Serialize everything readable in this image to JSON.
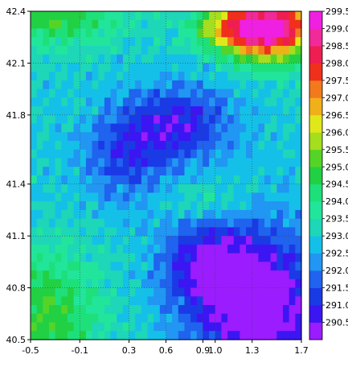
{
  "chart_data": {
    "type": "heatmap",
    "title": "",
    "xlabel": "",
    "ylabel": "",
    "xlim": [
      -0.5,
      1.7
    ],
    "ylim": [
      40.5,
      42.4
    ],
    "x_ticks": [
      "-0.5",
      "-0.1",
      "0.3",
      "0.6",
      "0.9",
      "1.0",
      "1.3",
      "1.7"
    ],
    "x_tick_values": [
      -0.5,
      -0.1,
      0.3,
      0.6,
      0.9,
      1.0,
      1.3,
      1.7
    ],
    "y_ticks": [
      "40.5",
      "40.8",
      "41.1",
      "41.4",
      "41.8",
      "42.1",
      "42.4"
    ],
    "y_tick_values": [
      40.5,
      40.8,
      41.1,
      41.4,
      41.8,
      42.1,
      42.4
    ],
    "grid": true,
    "grid_style": "dotted",
    "colorbar": {
      "placement": "right",
      "labels": [
        "290.5",
        "291.0",
        "291.5",
        "292.0",
        "292.5",
        "293.0",
        "293.5",
        "294.0",
        "294.5",
        "295.0",
        "295.5",
        "296.0",
        "296.5",
        "297.0",
        "297.5",
        "298.0",
        "298.5",
        "299.0",
        "299.5"
      ],
      "colors": [
        "#9b1cff",
        "#3b16f2",
        "#1a3ae6",
        "#1f63ee",
        "#2196f3",
        "#14c0e8",
        "#1ed6b8",
        "#22e59c",
        "#1ee07a",
        "#22d044",
        "#55d428",
        "#a4de1e",
        "#e0e81a",
        "#f0b01a",
        "#f27a1c",
        "#f0301c",
        "#ee1e52",
        "#f02a98",
        "#f020e2"
      ],
      "min": 290.0,
      "max": 300.0
    },
    "field": {
      "description": "",
      "grid_nx": 44,
      "grid_ny": 38
    }
  }
}
